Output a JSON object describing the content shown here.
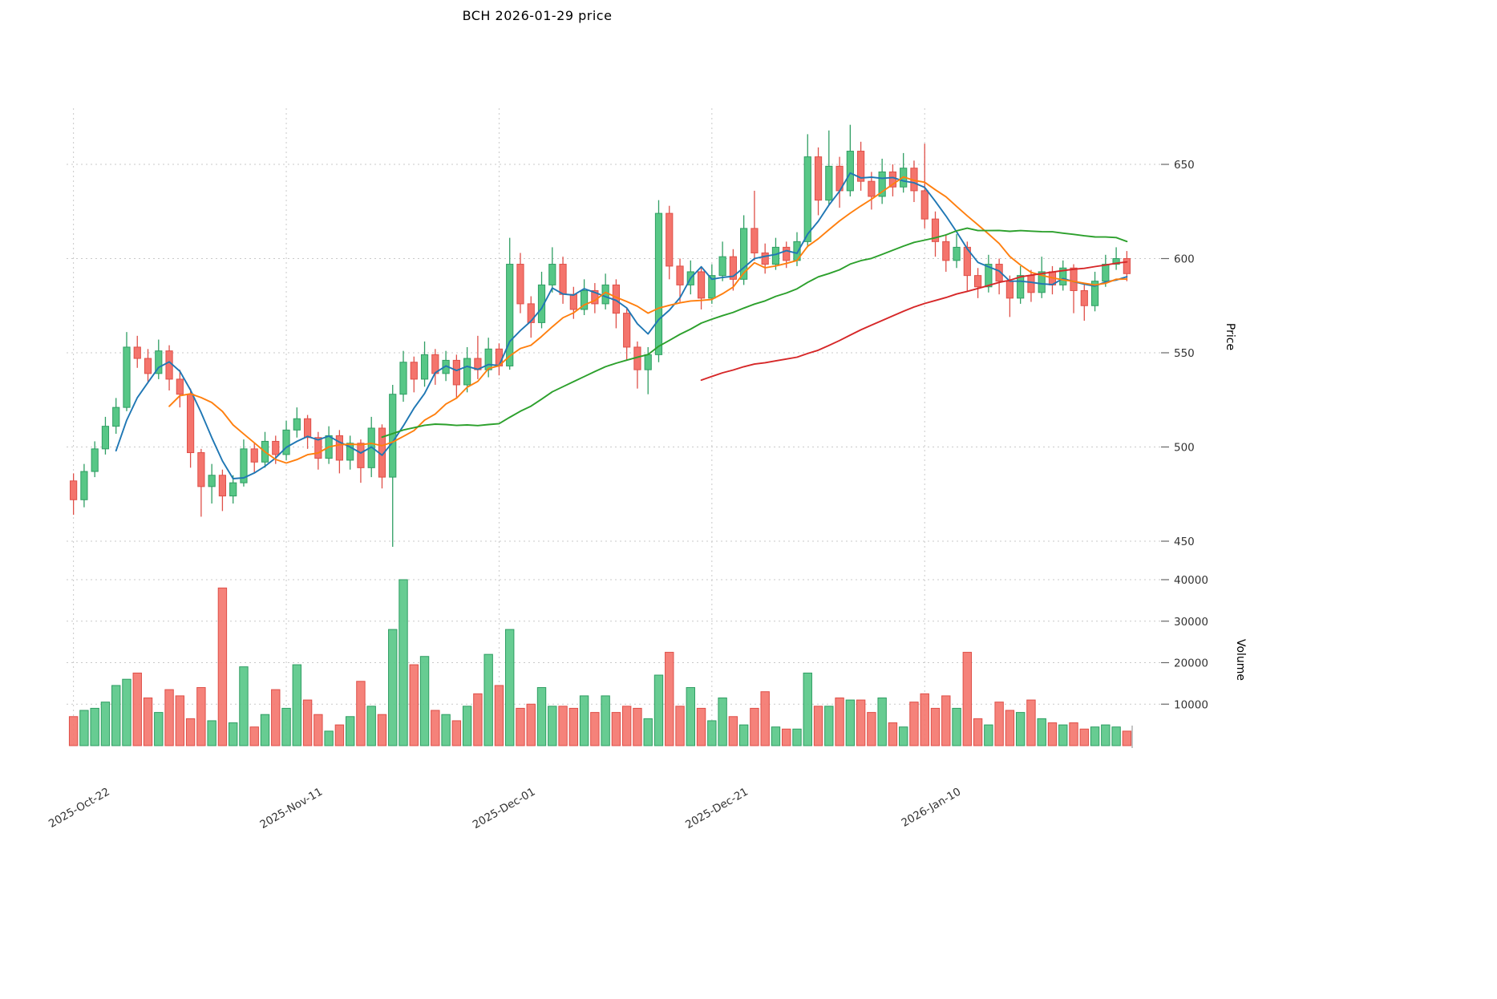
{
  "title": "BCH  2026-01-29  price",
  "chart_data": {
    "type": "candlestick",
    "symbol": "BCH",
    "as_of_date": "2026-01-29",
    "title": "BCH  2026-01-29  price",
    "grid": true,
    "legend": "none",
    "price_axis": {
      "label": "Price",
      "ticks": [
        450,
        500,
        550,
        600,
        650
      ],
      "side": "right"
    },
    "volume_axis": {
      "label": "Volume",
      "ticks": [
        10000,
        20000,
        30000,
        40000
      ],
      "side": "right"
    },
    "x_ticks": [
      {
        "index": 0,
        "label": "2025-Oct-22"
      },
      {
        "index": 20,
        "label": "2025-Nov-11"
      },
      {
        "index": 40,
        "label": "2025-Dec-01"
      },
      {
        "index": 60,
        "label": "2025-Dec-21"
      },
      {
        "index": 80,
        "label": "2026-Jan-10"
      }
    ],
    "colors": {
      "up": "#57c786",
      "up_edge": "#2f9e63",
      "down": "#f4746c",
      "down_edge": "#df4f48",
      "ma": [
        "#1f77b4",
        "#ff7f0e",
        "#2ca02c",
        "#d62728"
      ],
      "grid": "#c9c9c9",
      "axis_text": "#333333"
    },
    "ma_windows": [
      5,
      10,
      30,
      60
    ],
    "columns": [
      "date",
      "open",
      "high",
      "low",
      "close",
      "volume"
    ],
    "candles": [
      [
        "2025-10-22",
        482,
        486,
        464,
        472,
        7000
      ],
      [
        "2025-10-23",
        472,
        491,
        468,
        487,
        8500
      ],
      [
        "2025-10-24",
        487,
        503,
        484,
        499,
        9000
      ],
      [
        "2025-10-25",
        499,
        516,
        496,
        511,
        10500
      ],
      [
        "2025-10-26",
        511,
        526,
        507,
        521,
        14500
      ],
      [
        "2025-10-27",
        521,
        561,
        519,
        553,
        16000
      ],
      [
        "2025-10-28",
        553,
        559,
        542,
        547,
        17500
      ],
      [
        "2025-10-29",
        547,
        552,
        534,
        539,
        11500
      ],
      [
        "2025-10-30",
        539,
        557,
        536,
        551,
        8000
      ],
      [
        "2025-10-31",
        551,
        554,
        530,
        536,
        13500
      ],
      [
        "2025-11-01",
        536,
        541,
        521,
        528,
        12000
      ],
      [
        "2025-11-02",
        528,
        531,
        489,
        497,
        6500
      ],
      [
        "2025-11-03",
        497,
        499,
        463,
        479,
        14000
      ],
      [
        "2025-11-04",
        479,
        491,
        470,
        485,
        6000
      ],
      [
        "2025-11-05",
        485,
        488,
        466,
        474,
        38000
      ],
      [
        "2025-11-06",
        474,
        485,
        470,
        481,
        5500
      ],
      [
        "2025-11-07",
        481,
        504,
        479,
        499,
        19000
      ],
      [
        "2025-11-08",
        499,
        502,
        486,
        492,
        4500
      ],
      [
        "2025-11-09",
        492,
        508,
        489,
        503,
        7500
      ],
      [
        "2025-11-10",
        503,
        506,
        491,
        496,
        13500
      ],
      [
        "2025-11-11",
        496,
        514,
        493,
        509,
        9000
      ],
      [
        "2025-11-12",
        509,
        521,
        505,
        515,
        19500
      ],
      [
        "2025-11-13",
        515,
        517,
        499,
        505,
        11000
      ],
      [
        "2025-11-14",
        505,
        508,
        488,
        494,
        7500
      ],
      [
        "2025-11-15",
        494,
        511,
        491,
        506,
        3500
      ],
      [
        "2025-11-16",
        506,
        509,
        486,
        493,
        5000
      ],
      [
        "2025-11-17",
        493,
        506,
        488,
        502,
        7000
      ],
      [
        "2025-11-18",
        502,
        504,
        481,
        489,
        15500
      ],
      [
        "2025-11-19",
        489,
        516,
        484,
        510,
        9500
      ],
      [
        "2025-11-20",
        510,
        512,
        478,
        484,
        7500
      ],
      [
        "2025-11-21",
        484,
        533,
        447,
        528,
        28000
      ],
      [
        "2025-11-22",
        528,
        551,
        524,
        545,
        40000
      ],
      [
        "2025-11-23",
        545,
        548,
        529,
        536,
        19500
      ],
      [
        "2025-11-24",
        536,
        556,
        532,
        549,
        21500
      ],
      [
        "2025-11-25",
        549,
        552,
        533,
        539,
        8500
      ],
      [
        "2025-11-26",
        539,
        551,
        535,
        546,
        7500
      ],
      [
        "2025-11-27",
        546,
        549,
        526,
        533,
        6000
      ],
      [
        "2025-11-28",
        533,
        553,
        529,
        547,
        9500
      ],
      [
        "2025-11-29",
        547,
        559,
        536,
        541,
        12500
      ],
      [
        "2025-11-30",
        541,
        558,
        537,
        552,
        22000
      ],
      [
        "2025-12-01",
        552,
        555,
        538,
        543,
        14500
      ],
      [
        "2025-12-02",
        543,
        611,
        541,
        597,
        28000
      ],
      [
        "2025-12-03",
        597,
        603,
        571,
        576,
        9000
      ],
      [
        "2025-12-04",
        576,
        580,
        558,
        566,
        10000
      ],
      [
        "2025-12-05",
        566,
        593,
        563,
        586,
        14000
      ],
      [
        "2025-12-06",
        586,
        606,
        582,
        597,
        9500
      ],
      [
        "2025-12-07",
        597,
        601,
        576,
        581,
        9500
      ],
      [
        "2025-12-08",
        581,
        585,
        568,
        573,
        9000
      ],
      [
        "2025-12-09",
        573,
        589,
        570,
        583,
        12000
      ],
      [
        "2025-12-10",
        583,
        587,
        571,
        576,
        8000
      ],
      [
        "2025-12-11",
        576,
        592,
        573,
        586,
        12000
      ],
      [
        "2025-12-12",
        586,
        589,
        563,
        571,
        8000
      ],
      [
        "2025-12-13",
        571,
        574,
        546,
        553,
        9500
      ],
      [
        "2025-12-14",
        553,
        556,
        531,
        541,
        9000
      ],
      [
        "2025-12-15",
        541,
        553,
        528,
        549,
        6500
      ],
      [
        "2025-12-16",
        549,
        631,
        545,
        624,
        17000
      ],
      [
        "2025-12-17",
        624,
        628,
        589,
        596,
        22500
      ],
      [
        "2025-12-18",
        596,
        600,
        577,
        586,
        9500
      ],
      [
        "2025-12-19",
        586,
        599,
        581,
        593,
        14000
      ],
      [
        "2025-12-20",
        593,
        596,
        573,
        579,
        9000
      ],
      [
        "2025-12-21",
        579,
        597,
        576,
        591,
        6000
      ],
      [
        "2025-12-22",
        591,
        609,
        588,
        601,
        11500
      ],
      [
        "2025-12-23",
        601,
        605,
        583,
        589,
        7000
      ],
      [
        "2025-12-24",
        589,
        623,
        586,
        616,
        5000
      ],
      [
        "2025-12-25",
        616,
        636,
        599,
        603,
        9000
      ],
      [
        "2025-12-26",
        603,
        608,
        592,
        597,
        13000
      ],
      [
        "2025-12-27",
        597,
        611,
        594,
        606,
        4500
      ],
      [
        "2025-12-28",
        606,
        609,
        595,
        599,
        4000
      ],
      [
        "2025-12-29",
        599,
        614,
        596,
        609,
        4000
      ],
      [
        "2025-12-30",
        609,
        666,
        606,
        654,
        17500
      ],
      [
        "2025-12-31",
        654,
        659,
        623,
        631,
        9500
      ],
      [
        "2026-01-01",
        631,
        668,
        628,
        649,
        9500
      ],
      [
        "2026-01-02",
        649,
        654,
        627,
        636,
        11500
      ],
      [
        "2026-01-03",
        636,
        671,
        633,
        657,
        11000
      ],
      [
        "2026-01-04",
        657,
        662,
        636,
        641,
        11000
      ],
      [
        "2026-01-05",
        641,
        646,
        626,
        633,
        8000
      ],
      [
        "2026-01-06",
        633,
        653,
        629,
        646,
        11500
      ],
      [
        "2026-01-07",
        646,
        650,
        633,
        638,
        5500
      ],
      [
        "2026-01-08",
        638,
        656,
        635,
        648,
        4500
      ],
      [
        "2026-01-09",
        648,
        652,
        630,
        636,
        10500
      ],
      [
        "2026-01-10",
        636,
        661,
        616,
        621,
        12500
      ],
      [
        "2026-01-11",
        621,
        625,
        601,
        609,
        9000
      ],
      [
        "2026-01-12",
        609,
        613,
        593,
        599,
        12000
      ],
      [
        "2026-01-13",
        599,
        613,
        595,
        606,
        9000
      ],
      [
        "2026-01-14",
        606,
        609,
        583,
        591,
        22500
      ],
      [
        "2026-01-15",
        591,
        595,
        579,
        585,
        6500
      ],
      [
        "2026-01-16",
        585,
        602,
        582,
        597,
        5000
      ],
      [
        "2026-01-17",
        597,
        600,
        581,
        588,
        10500
      ],
      [
        "2026-01-18",
        588,
        591,
        569,
        579,
        8500
      ],
      [
        "2026-01-19",
        579,
        596,
        576,
        591,
        8000
      ],
      [
        "2026-01-20",
        591,
        594,
        577,
        582,
        11000
      ],
      [
        "2026-01-21",
        582,
        601,
        579,
        593,
        6500
      ],
      [
        "2026-01-22",
        593,
        596,
        581,
        586,
        5500
      ],
      [
        "2026-01-23",
        586,
        599,
        583,
        595,
        5000
      ],
      [
        "2026-01-24",
        595,
        597,
        571,
        583,
        5500
      ],
      [
        "2026-01-25",
        583,
        586,
        567,
        575,
        4000
      ],
      [
        "2026-01-26",
        575,
        593,
        572,
        588,
        4500
      ],
      [
        "2026-01-27",
        588,
        602,
        585,
        597,
        5000
      ],
      [
        "2026-01-28",
        597,
        606,
        594,
        600,
        4500
      ],
      [
        "2026-01-29",
        600,
        604,
        588,
        592,
        3500
      ]
    ]
  }
}
